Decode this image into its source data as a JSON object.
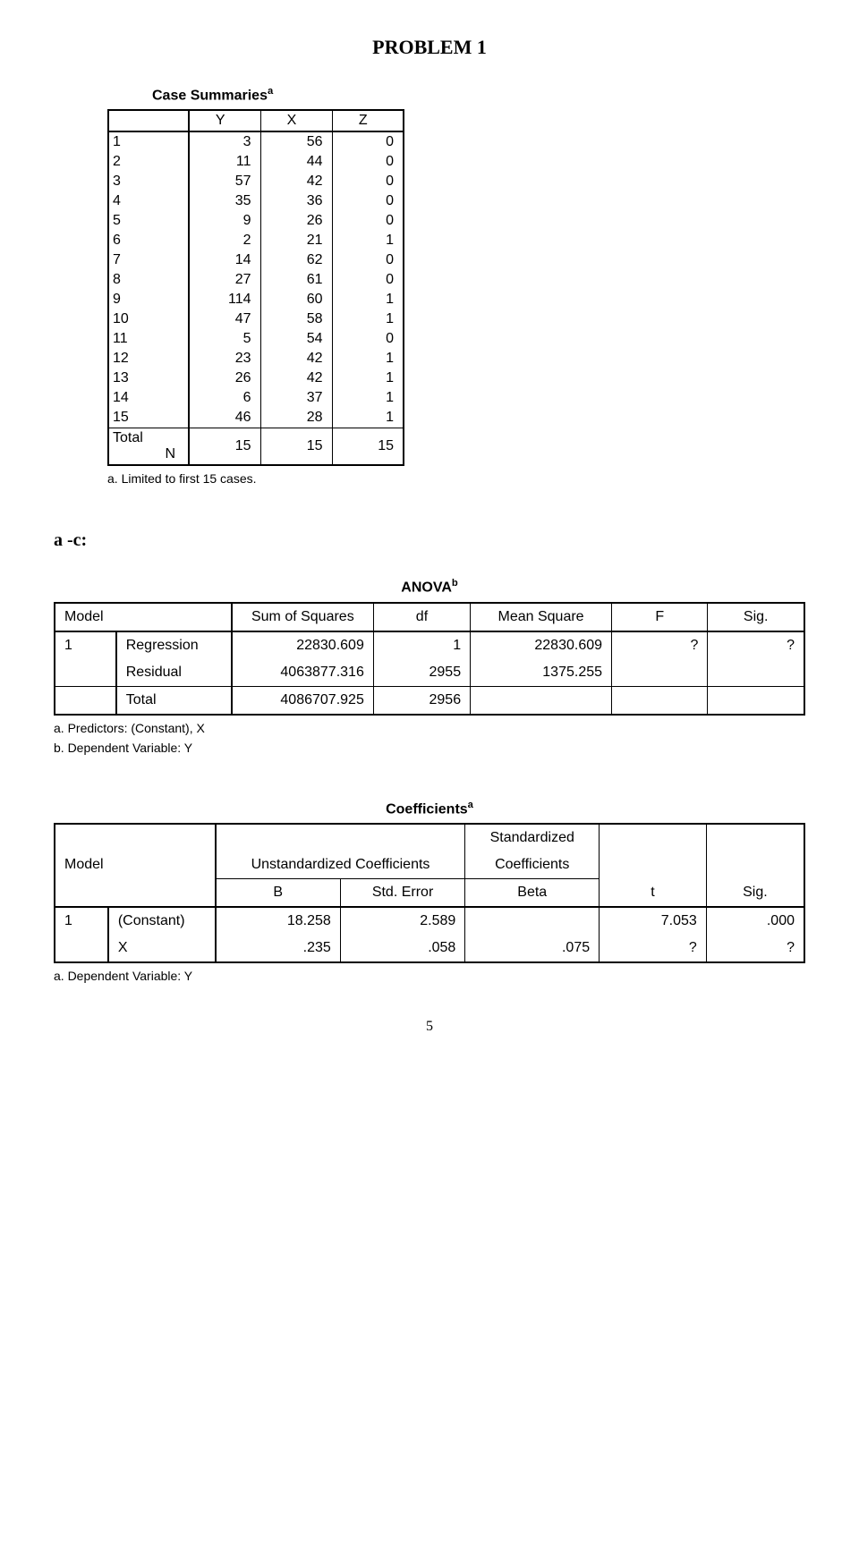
{
  "title": "PROBLEM 1",
  "case_summaries": {
    "title": "Case Summaries",
    "sup": "a",
    "columns": [
      "Y",
      "X",
      "Z"
    ],
    "rows": [
      {
        "idx": "1",
        "y": "3",
        "x": "56",
        "z": "0"
      },
      {
        "idx": "2",
        "y": "11",
        "x": "44",
        "z": "0"
      },
      {
        "idx": "3",
        "y": "57",
        "x": "42",
        "z": "0"
      },
      {
        "idx": "4",
        "y": "35",
        "x": "36",
        "z": "0"
      },
      {
        "idx": "5",
        "y": "9",
        "x": "26",
        "z": "0"
      },
      {
        "idx": "6",
        "y": "2",
        "x": "21",
        "z": "1"
      },
      {
        "idx": "7",
        "y": "14",
        "x": "62",
        "z": "0"
      },
      {
        "idx": "8",
        "y": "27",
        "x": "61",
        "z": "0"
      },
      {
        "idx": "9",
        "y": "114",
        "x": "60",
        "z": "1"
      },
      {
        "idx": "10",
        "y": "47",
        "x": "58",
        "z": "1"
      },
      {
        "idx": "11",
        "y": "5",
        "x": "54",
        "z": "0"
      },
      {
        "idx": "12",
        "y": "23",
        "x": "42",
        "z": "1"
      },
      {
        "idx": "13",
        "y": "26",
        "x": "42",
        "z": "1"
      },
      {
        "idx": "14",
        "y": "6",
        "x": "37",
        "z": "1"
      },
      {
        "idx": "15",
        "y": "46",
        "x": "28",
        "z": "1"
      }
    ],
    "total": {
      "label": "Total",
      "n_label": "N",
      "y": "15",
      "x": "15",
      "z": "15"
    },
    "footnote": "a. Limited to first 15 cases."
  },
  "section_ac": "a -c:",
  "anova": {
    "title": "ANOVA",
    "sup": "b",
    "headers": {
      "model": "Model",
      "ss": "Sum of Squares",
      "df": "df",
      "ms": "Mean Square",
      "f": "F",
      "sig": "Sig."
    },
    "rows": [
      {
        "model": "1",
        "label": "Regression",
        "ss": "22830.609",
        "df": "1",
        "ms": "22830.609",
        "f": "?",
        "sig": "?"
      },
      {
        "model": "",
        "label": "Residual",
        "ss": "4063877.316",
        "df": "2955",
        "ms": "1375.255",
        "f": "",
        "sig": ""
      },
      {
        "model": "",
        "label": "Total",
        "ss": "4086707.925",
        "df": "2956",
        "ms": "",
        "f": "",
        "sig": ""
      }
    ],
    "foot_a": "a. Predictors: (Constant), X",
    "foot_b": "b. Dependent Variable: Y"
  },
  "coef": {
    "title": "Coefficients",
    "sup": "a",
    "group_unstd": "Unstandardized Coefficients",
    "group_std_l1": "Standardized",
    "group_std_l2": "Coefficients",
    "headers": {
      "model": "Model",
      "b": "B",
      "se": "Std. Error",
      "beta": "Beta",
      "t": "t",
      "sig": "Sig."
    },
    "rows": [
      {
        "model": "1",
        "label": "(Constant)",
        "b": "18.258",
        "se": "2.589",
        "beta": "",
        "t": "7.053",
        "sig": ".000"
      },
      {
        "model": "",
        "label": "X",
        "b": ".235",
        "se": ".058",
        "beta": ".075",
        "t": "?",
        "sig": "?"
      }
    ],
    "foot": "a. Dependent Variable: Y"
  },
  "page_number": "5"
}
